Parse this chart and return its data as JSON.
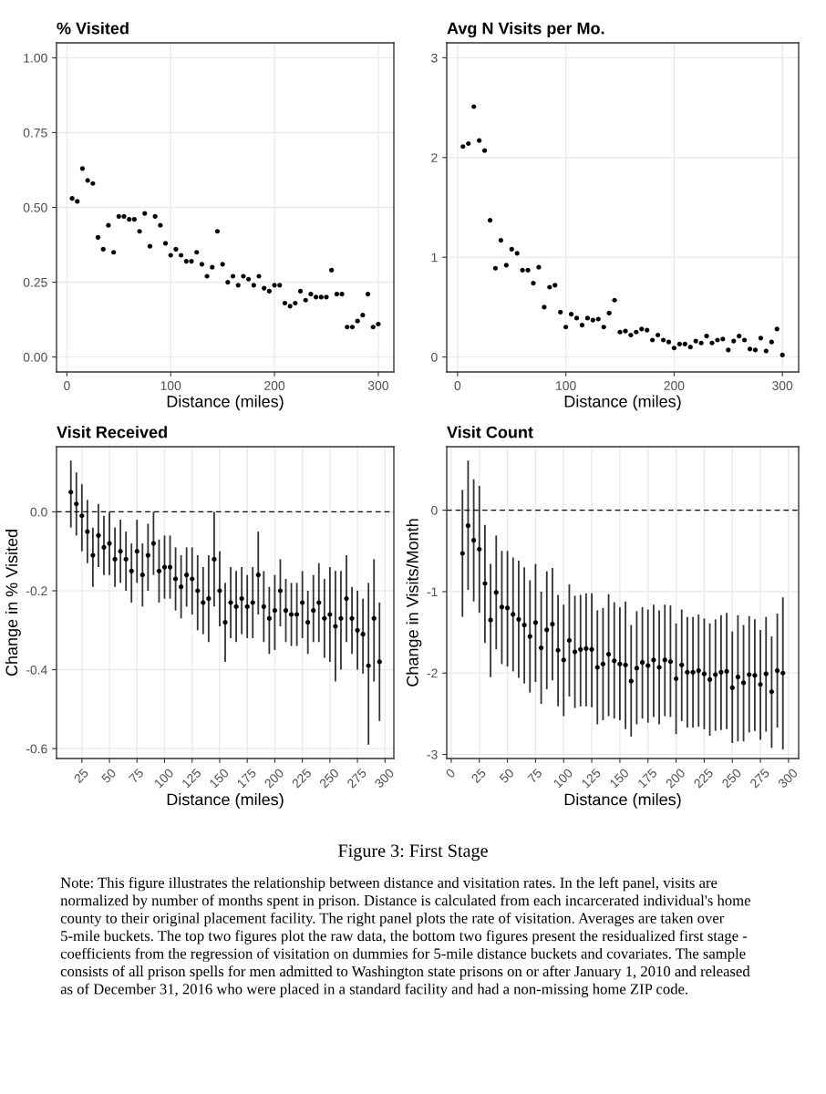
{
  "chart_data": [
    {
      "type": "scatter",
      "title": "% Visited",
      "xlabel": "Distance (miles)",
      "grid": true,
      "marker": "circle",
      "x": [
        5,
        10,
        15,
        20,
        25,
        30,
        35,
        40,
        45,
        50,
        55,
        60,
        65,
        70,
        75,
        80,
        85,
        90,
        95,
        100,
        105,
        110,
        115,
        120,
        125,
        130,
        135,
        140,
        145,
        150,
        155,
        160,
        165,
        170,
        175,
        180,
        185,
        190,
        195,
        200,
        205,
        210,
        215,
        220,
        225,
        230,
        235,
        240,
        245,
        250,
        255,
        260,
        265,
        270,
        275,
        280,
        285,
        290,
        295,
        300
      ],
      "series": [
        {
          "color": "#000000",
          "values": [
            0.53,
            0.52,
            0.63,
            0.59,
            0.58,
            0.4,
            0.36,
            0.44,
            0.35,
            0.47,
            0.47,
            0.46,
            0.46,
            0.42,
            0.48,
            0.37,
            0.47,
            0.44,
            0.38,
            0.34,
            0.36,
            0.34,
            0.32,
            0.32,
            0.35,
            0.31,
            0.27,
            0.3,
            0.42,
            0.31,
            0.25,
            0.27,
            0.24,
            0.27,
            0.26,
            0.24,
            0.27,
            0.23,
            0.22,
            0.24,
            0.24,
            0.18,
            0.17,
            0.18,
            0.22,
            0.19,
            0.21,
            0.2,
            0.2,
            0.2,
            0.29,
            0.21,
            0.21,
            0.1,
            0.1,
            0.12,
            0.14,
            0.21,
            0.1,
            0.11
          ]
        }
      ],
      "xlim": [
        -10,
        315
      ],
      "xticks": [
        0,
        100,
        200,
        300
      ],
      "ylim": [
        -0.05,
        1.05
      ],
      "yticks": [
        {
          "value": 0,
          "label": "0.00"
        },
        {
          "value": 0.25,
          "label": "0.25"
        },
        {
          "value": 0.5,
          "label": "0.50"
        },
        {
          "value": 0.75,
          "label": "0.75"
        },
        {
          "value": 1,
          "label": "1.00"
        }
      ]
    },
    {
      "type": "scatter",
      "title": "Avg N Visits per Mo.",
      "xlabel": "Distance (miles)",
      "grid": true,
      "marker": "circle",
      "x": [
        5,
        10,
        15,
        20,
        25,
        30,
        35,
        40,
        45,
        50,
        55,
        60,
        65,
        70,
        75,
        80,
        85,
        90,
        95,
        100,
        105,
        110,
        115,
        120,
        125,
        130,
        135,
        140,
        145,
        150,
        155,
        160,
        165,
        170,
        175,
        180,
        185,
        190,
        195,
        200,
        205,
        210,
        215,
        220,
        225,
        230,
        235,
        240,
        245,
        250,
        255,
        260,
        265,
        270,
        275,
        280,
        285,
        290,
        295,
        300
      ],
      "series": [
        {
          "color": "#000000",
          "values": [
            2.11,
            2.14,
            2.51,
            2.17,
            2.07,
            1.37,
            0.89,
            1.17,
            0.92,
            1.08,
            1.04,
            0.87,
            0.87,
            0.74,
            0.9,
            0.5,
            0.7,
            0.72,
            0.45,
            0.3,
            0.43,
            0.39,
            0.32,
            0.39,
            0.37,
            0.38,
            0.3,
            0.44,
            0.57,
            0.25,
            0.26,
            0.22,
            0.25,
            0.28,
            0.27,
            0.17,
            0.22,
            0.17,
            0.15,
            0.09,
            0.13,
            0.13,
            0.1,
            0.16,
            0.14,
            0.21,
            0.14,
            0.17,
            0.18,
            0.07,
            0.16,
            0.21,
            0.17,
            0.08,
            0.07,
            0.19,
            0.06,
            0.15,
            0.28,
            0.02
          ]
        }
      ],
      "xlim": [
        -10,
        315
      ],
      "xticks": [
        0,
        100,
        200,
        300
      ],
      "ylim": [
        -0.15,
        3.15
      ],
      "yticks": [
        0,
        1,
        2,
        3
      ]
    },
    {
      "type": "scatter",
      "title": "Visit Received",
      "xlabel": "Distance (miles)",
      "ylabel": "Change in % Visited",
      "grid": true,
      "marker": "circle",
      "x": [
        15,
        20,
        25,
        30,
        35,
        40,
        45,
        50,
        55,
        60,
        65,
        70,
        75,
        80,
        85,
        90,
        95,
        100,
        105,
        110,
        115,
        120,
        125,
        130,
        135,
        140,
        145,
        150,
        155,
        160,
        165,
        170,
        175,
        180,
        185,
        190,
        195,
        200,
        205,
        210,
        215,
        220,
        225,
        230,
        235,
        240,
        245,
        250,
        255,
        260,
        265,
        270,
        275,
        280,
        285,
        290,
        295
      ],
      "series": [
        {
          "color": "#000000",
          "values": [
            0.05,
            0.02,
            -0.01,
            -0.05,
            -0.11,
            -0.06,
            -0.09,
            -0.08,
            -0.12,
            -0.1,
            -0.12,
            -0.15,
            -0.1,
            -0.16,
            -0.11,
            -0.08,
            -0.15,
            -0.14,
            -0.14,
            -0.17,
            -0.19,
            -0.16,
            -0.17,
            -0.2,
            -0.23,
            -0.22,
            -0.12,
            -0.2,
            -0.28,
            -0.23,
            -0.24,
            -0.22,
            -0.24,
            -0.23,
            -0.16,
            -0.24,
            -0.27,
            -0.25,
            -0.2,
            -0.25,
            -0.26,
            -0.26,
            -0.23,
            -0.28,
            -0.25,
            -0.23,
            -0.27,
            -0.26,
            -0.29,
            -0.27,
            -0.22,
            -0.27,
            -0.3,
            -0.31,
            -0.39,
            -0.27,
            -0.38
          ],
          "errors": [
            [
              -0.04,
              0.13
            ],
            [
              -0.06,
              0.1
            ],
            [
              -0.1,
              0.07
            ],
            [
              -0.13,
              0.03
            ],
            [
              -0.19,
              -0.04
            ],
            [
              -0.14,
              0.02
            ],
            [
              -0.16,
              -0.01
            ],
            [
              -0.16,
              0.0
            ],
            [
              -0.19,
              -0.04
            ],
            [
              -0.18,
              -0.02
            ],
            [
              -0.2,
              -0.05
            ],
            [
              -0.23,
              -0.08
            ],
            [
              -0.18,
              -0.02
            ],
            [
              -0.24,
              -0.08
            ],
            [
              -0.2,
              -0.03
            ],
            [
              -0.16,
              0.0
            ],
            [
              -0.23,
              -0.07
            ],
            [
              -0.22,
              -0.06
            ],
            [
              -0.22,
              -0.06
            ],
            [
              -0.25,
              -0.09
            ],
            [
              -0.27,
              -0.11
            ],
            [
              -0.24,
              -0.09
            ],
            [
              -0.26,
              -0.09
            ],
            [
              -0.3,
              -0.11
            ],
            [
              -0.31,
              -0.14
            ],
            [
              -0.33,
              -0.11
            ],
            [
              -0.24,
              0.0
            ],
            [
              -0.29,
              -0.1
            ],
            [
              -0.38,
              -0.18
            ],
            [
              -0.32,
              -0.14
            ],
            [
              -0.33,
              -0.15
            ],
            [
              -0.31,
              -0.14
            ],
            [
              -0.32,
              -0.16
            ],
            [
              -0.32,
              -0.14
            ],
            [
              -0.26,
              -0.05
            ],
            [
              -0.33,
              -0.15
            ],
            [
              -0.36,
              -0.19
            ],
            [
              -0.35,
              -0.16
            ],
            [
              -0.29,
              -0.12
            ],
            [
              -0.33,
              -0.17
            ],
            [
              -0.34,
              -0.18
            ],
            [
              -0.34,
              -0.18
            ],
            [
              -0.32,
              -0.15
            ],
            [
              -0.36,
              -0.2
            ],
            [
              -0.33,
              -0.16
            ],
            [
              -0.33,
              -0.13
            ],
            [
              -0.37,
              -0.17
            ],
            [
              -0.38,
              -0.14
            ],
            [
              -0.43,
              -0.15
            ],
            [
              -0.4,
              -0.15
            ],
            [
              -0.33,
              -0.11
            ],
            [
              -0.36,
              -0.19
            ],
            [
              -0.4,
              -0.2
            ],
            [
              -0.41,
              -0.22
            ],
            [
              -0.59,
              -0.18
            ],
            [
              -0.43,
              -0.12
            ],
            [
              -0.53,
              -0.23
            ]
          ]
        }
      ],
      "xlim": [
        2,
        308
      ],
      "xticks": [
        25,
        50,
        75,
        100,
        125,
        150,
        175,
        200,
        225,
        250,
        275,
        300
      ],
      "ylim": [
        -0.625,
        0.165
      ],
      "yticks": [
        {
          "value": 0,
          "label": "0.0"
        },
        -0.2,
        -0.4,
        -0.6
      ],
      "ref_lines": [
        {
          "axis": "y",
          "value": 0,
          "color": "#000000",
          "line_style": "dashed"
        }
      ]
    },
    {
      "type": "scatter",
      "title": "Visit Count",
      "xlabel": "Distance (miles)",
      "ylabel": "Change in Visits/Month",
      "grid": true,
      "marker": "circle",
      "x": [
        10,
        15,
        20,
        25,
        30,
        35,
        40,
        45,
        50,
        55,
        60,
        65,
        70,
        75,
        80,
        85,
        90,
        95,
        100,
        105,
        110,
        115,
        120,
        125,
        130,
        135,
        140,
        145,
        150,
        155,
        160,
        165,
        170,
        175,
        180,
        185,
        190,
        195,
        200,
        205,
        210,
        215,
        220,
        225,
        230,
        235,
        240,
        245,
        250,
        255,
        260,
        265,
        270,
        275,
        280,
        285,
        290,
        295
      ],
      "series": [
        {
          "color": "#000000",
          "values": [
            -0.53,
            -0.19,
            -0.37,
            -0.48,
            -0.9,
            -1.35,
            -1.01,
            -1.19,
            -1.2,
            -1.28,
            -1.34,
            -1.41,
            -1.55,
            -1.38,
            -1.69,
            -1.47,
            -1.4,
            -1.72,
            -1.84,
            -1.6,
            -1.74,
            -1.71,
            -1.7,
            -1.71,
            -1.93,
            -1.89,
            -1.77,
            -1.85,
            -1.89,
            -1.9,
            -2.1,
            -1.94,
            -1.87,
            -1.91,
            -1.84,
            -1.93,
            -1.84,
            -1.86,
            -2.07,
            -1.9,
            -1.99,
            -1.99,
            -1.97,
            -2.01,
            -2.08,
            -2.02,
            -1.99,
            -1.98,
            -2.18,
            -2.05,
            -2.12,
            -2.02,
            -2.03,
            -2.14,
            -2.01,
            -2.23,
            -1.97,
            -2.0
          ],
          "errors": [
            [
              -1.31,
              0.25
            ],
            [
              -0.98,
              0.61
            ],
            [
              -1.12,
              0.38
            ],
            [
              -1.26,
              0.3
            ],
            [
              -1.63,
              -0.18
            ],
            [
              -2.05,
              -0.66
            ],
            [
              -1.71,
              -0.31
            ],
            [
              -1.89,
              -0.5
            ],
            [
              -1.92,
              -0.5
            ],
            [
              -1.98,
              -0.58
            ],
            [
              -2.06,
              -0.62
            ],
            [
              -2.13,
              -0.7
            ],
            [
              -2.24,
              -0.86
            ],
            [
              -2.11,
              -0.66
            ],
            [
              -2.38,
              -1.0
            ],
            [
              -2.2,
              -0.75
            ],
            [
              -2.09,
              -0.71
            ],
            [
              -2.41,
              -1.04
            ],
            [
              -2.53,
              -1.16
            ],
            [
              -2.29,
              -0.91
            ],
            [
              -2.43,
              -1.05
            ],
            [
              -2.41,
              -1.04
            ],
            [
              -2.41,
              -1.02
            ],
            [
              -2.42,
              -1.02
            ],
            [
              -2.63,
              -1.23
            ],
            [
              -2.58,
              -1.2
            ],
            [
              -2.53,
              -1.03
            ],
            [
              -2.56,
              -1.13
            ],
            [
              -2.58,
              -1.19
            ],
            [
              -2.69,
              -1.12
            ],
            [
              -2.78,
              -1.41
            ],
            [
              -2.63,
              -1.24
            ],
            [
              -2.56,
              -1.19
            ],
            [
              -2.61,
              -1.22
            ],
            [
              -2.54,
              -1.16
            ],
            [
              -2.63,
              -1.23
            ],
            [
              -2.53,
              -1.16
            ],
            [
              -2.54,
              -1.17
            ],
            [
              -2.75,
              -1.39
            ],
            [
              -2.59,
              -1.22
            ],
            [
              -2.67,
              -1.31
            ],
            [
              -2.67,
              -1.31
            ],
            [
              -2.66,
              -1.28
            ],
            [
              -2.69,
              -1.33
            ],
            [
              -2.77,
              -1.39
            ],
            [
              -2.71,
              -1.34
            ],
            [
              -2.7,
              -1.29
            ],
            [
              -2.69,
              -1.26
            ],
            [
              -2.86,
              -1.49
            ],
            [
              -2.84,
              -1.29
            ],
            [
              -2.84,
              -1.41
            ],
            [
              -2.73,
              -1.3
            ],
            [
              -2.71,
              -1.34
            ],
            [
              -2.82,
              -1.47
            ],
            [
              -2.72,
              -1.31
            ],
            [
              -2.92,
              -1.55
            ],
            [
              -2.67,
              -1.27
            ],
            [
              -2.94,
              -1.07
            ]
          ]
        }
      ],
      "xlim": [
        -4,
        309
      ],
      "xticks": [
        0,
        25,
        50,
        75,
        100,
        125,
        150,
        175,
        200,
        225,
        250,
        275,
        300
      ],
      "ylim": [
        -3.05,
        0.78
      ],
      "yticks": [
        0,
        -1,
        -2,
        -3
      ],
      "ref_lines": [
        {
          "axis": "y",
          "value": 0,
          "color": "#000000",
          "line_style": "dashed"
        }
      ],
      "annotations": [
        "Figure 3: First Stage",
        "Note: This figure illustrates the relationship between distance and visitation rates. In the left panel, visits are normalized by number of months spent in prison. Distance is calculated from each incarcerated individual's home county to their original placement facility. The right panel plots the rate of visitation. Averages are taken over 5-mile buckets. The top two figures plot the raw data, the bottom two figures present the residualized first stage - coefficients from the regression of visitation on dummies for 5-mile distance buckets and covariates. The sample consists of all prison spells for men admitted to Washington state prisons on or after January 1, 2010 and released as of December 31, 2016 who were placed in a standard facility and had a non-missing home ZIP code."
      ]
    }
  ]
}
